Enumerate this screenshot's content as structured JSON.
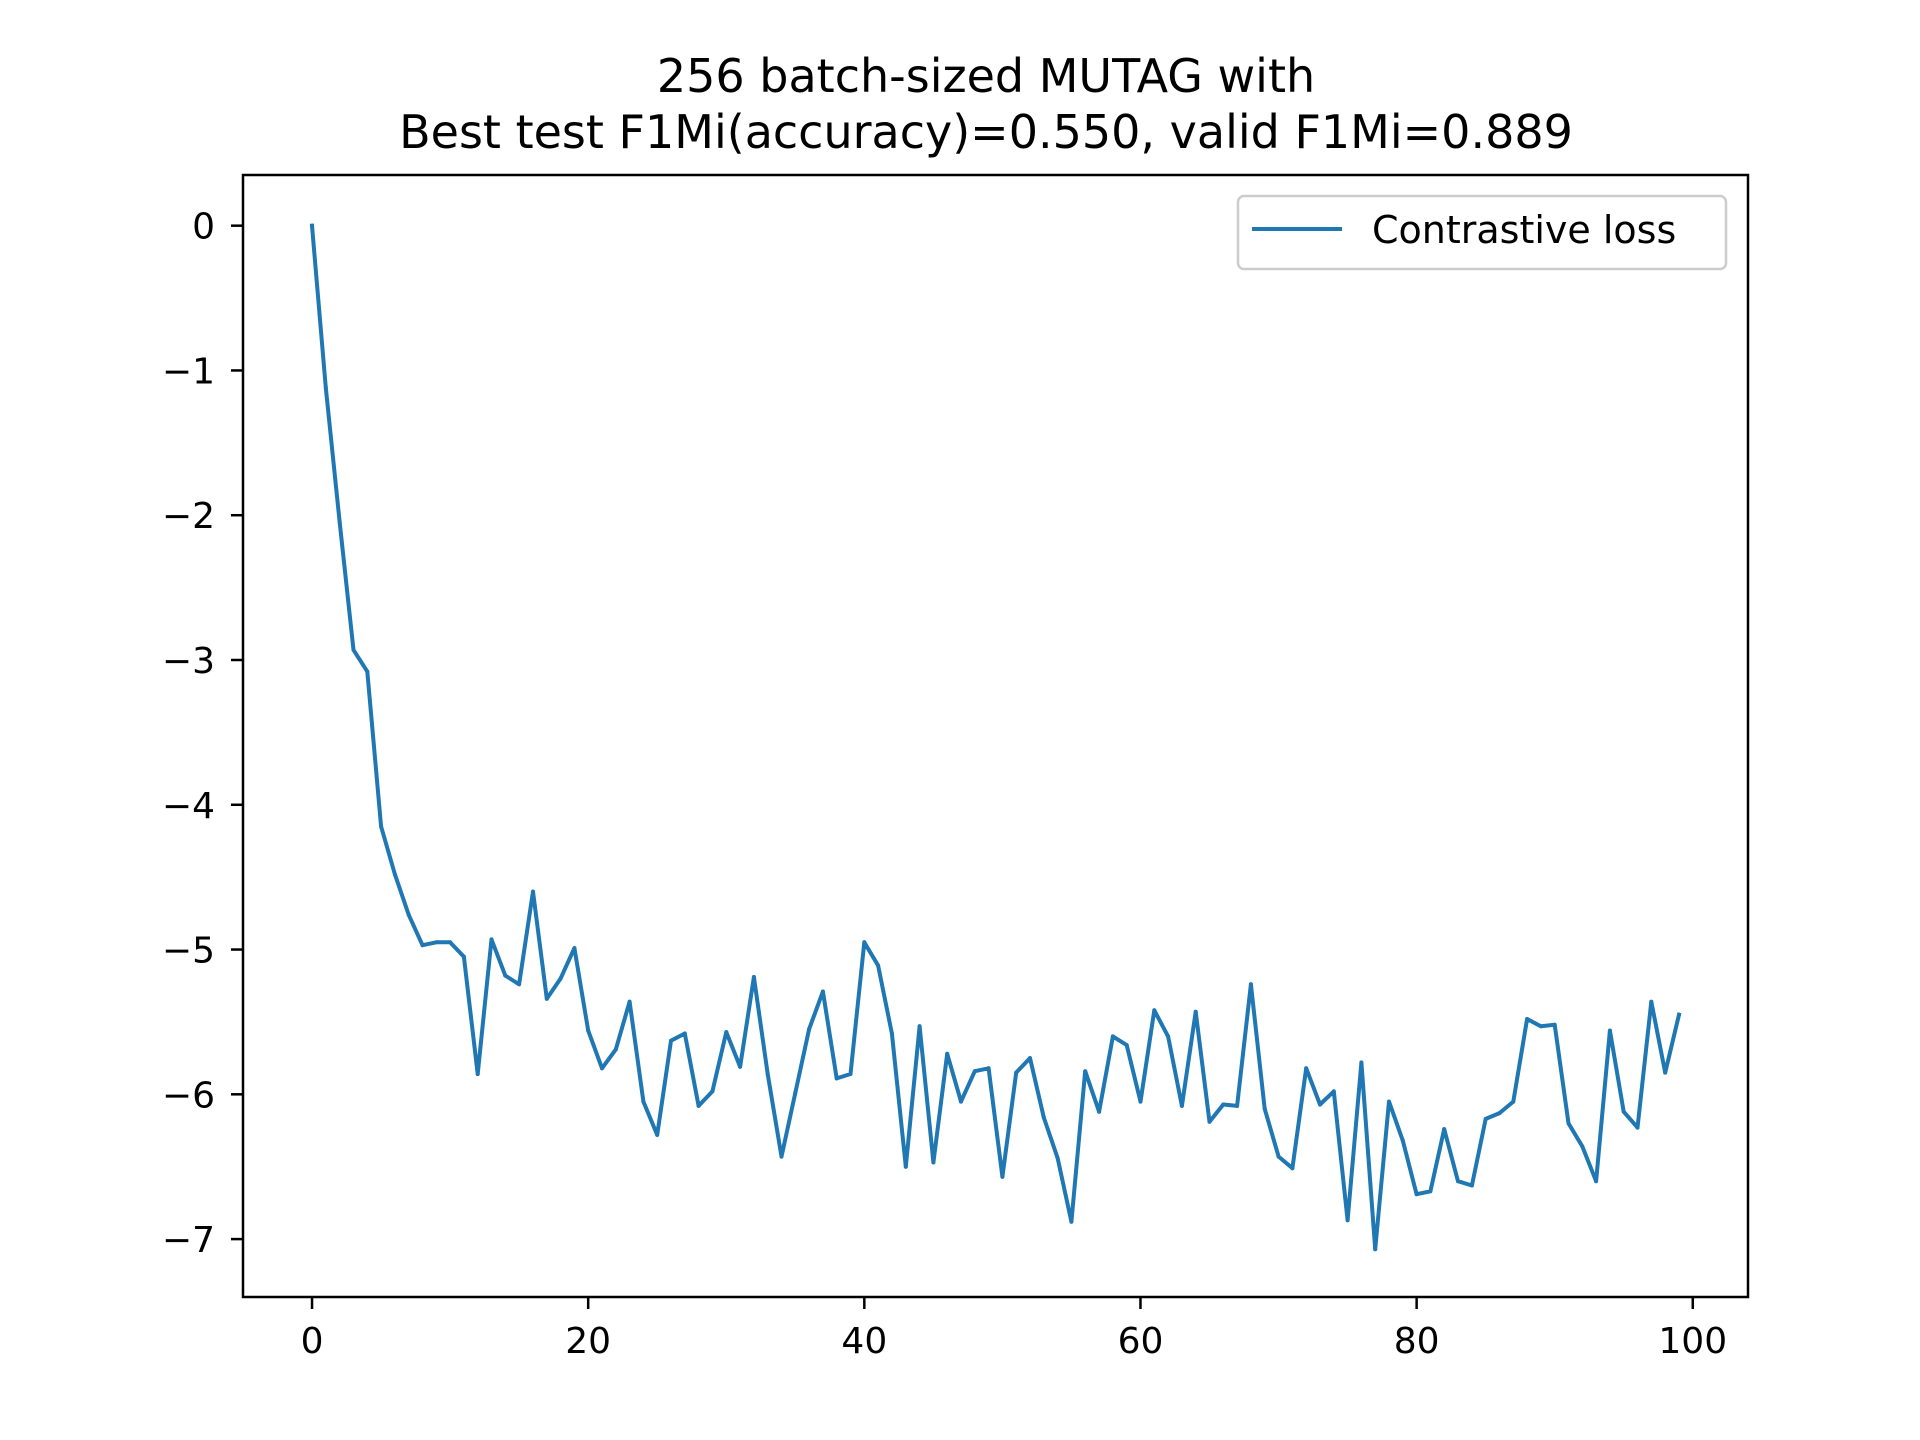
{
  "chart_data": {
    "type": "line",
    "title_lines": [
      "256 batch-sized MUTAG with",
      "Best test F1Mi(accuracy)=0.550, valid F1Mi=0.889"
    ],
    "xlabel": "",
    "ylabel": "",
    "xlim": [
      -5,
      104
    ],
    "ylim": [
      -7.4,
      0.35
    ],
    "x_ticks": [
      0,
      20,
      40,
      60,
      80,
      100
    ],
    "y_ticks": [
      0,
      -1,
      -2,
      -3,
      -4,
      -5,
      -6,
      -7
    ],
    "x_tick_labels": [
      "0",
      "20",
      "40",
      "60",
      "80",
      "100"
    ],
    "y_tick_labels": [
      "0",
      "−1",
      "−2",
      "−3",
      "−4",
      "−5",
      "−6",
      "−7"
    ],
    "grid": false,
    "legend_position": "top-right",
    "series": [
      {
        "name": "Contrastive loss",
        "color": "#1f77b4",
        "x": [
          0,
          1,
          2,
          3,
          4,
          5,
          6,
          7,
          8,
          9,
          10,
          11,
          12,
          13,
          14,
          15,
          16,
          17,
          18,
          19,
          20,
          21,
          22,
          23,
          24,
          25,
          26,
          27,
          28,
          29,
          30,
          31,
          32,
          33,
          34,
          35,
          36,
          37,
          38,
          39,
          40,
          41,
          42,
          43,
          44,
          45,
          46,
          47,
          48,
          49,
          50,
          51,
          52,
          53,
          54,
          55,
          56,
          57,
          58,
          59,
          60,
          61,
          62,
          63,
          64,
          65,
          66,
          67,
          68,
          69,
          70,
          71,
          72,
          73,
          74,
          75,
          76,
          77,
          78,
          79,
          80,
          81,
          82,
          83,
          84,
          85,
          86,
          87,
          88,
          89,
          90,
          91,
          92,
          93,
          94,
          95,
          96,
          97,
          98,
          99
        ],
        "y": [
          0.0,
          -1.12,
          -2.05,
          -2.93,
          -3.08,
          -4.15,
          -4.48,
          -4.76,
          -4.97,
          -4.95,
          -4.95,
          -5.05,
          -5.86,
          -4.93,
          -5.18,
          -5.24,
          -4.6,
          -5.34,
          -5.2,
          -4.99,
          -5.56,
          -5.82,
          -5.69,
          -5.36,
          -6.05,
          -6.28,
          -5.63,
          -5.58,
          -6.08,
          -5.98,
          -5.57,
          -5.81,
          -5.19,
          -5.86,
          -6.43,
          -5.99,
          -5.55,
          -5.29,
          -5.89,
          -5.86,
          -4.95,
          -5.11,
          -5.58,
          -6.5,
          -5.53,
          -6.47,
          -5.72,
          -6.05,
          -5.84,
          -5.82,
          -6.57,
          -5.85,
          -5.75,
          -6.16,
          -6.44,
          -6.88,
          -5.84,
          -6.12,
          -5.6,
          -5.66,
          -6.05,
          -5.42,
          -5.6,
          -6.08,
          -5.43,
          -6.19,
          -6.07,
          -6.08,
          -5.24,
          -6.1,
          -6.43,
          -6.51,
          -5.82,
          -6.07,
          -5.98,
          -6.87,
          -5.78,
          -7.07,
          -6.05,
          -6.32,
          -6.69,
          -6.67,
          -6.24,
          -6.6,
          -6.63,
          -6.17,
          -6.13,
          -6.05,
          -5.48,
          -5.53,
          -5.52,
          -6.2,
          -6.36,
          -6.6,
          -5.56,
          -6.12,
          -6.23,
          -5.36,
          -5.85,
          -5.45
        ]
      }
    ]
  }
}
